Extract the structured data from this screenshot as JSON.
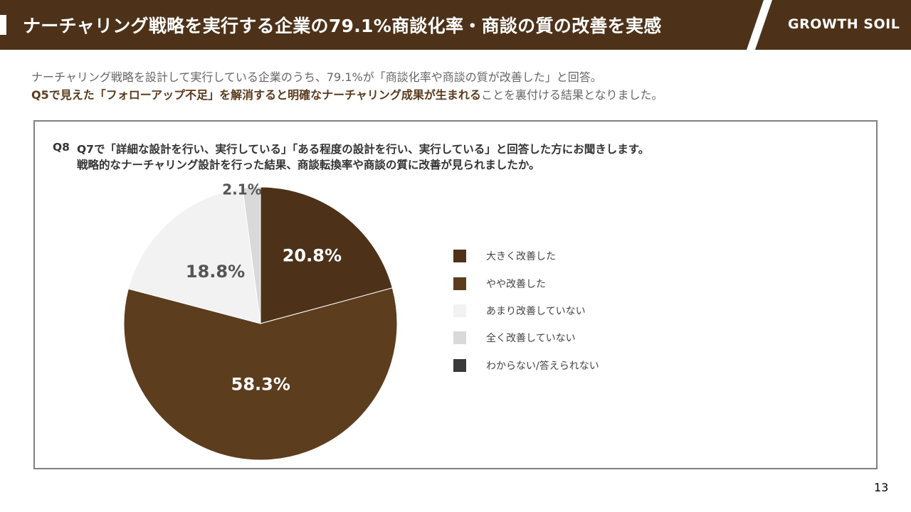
{
  "header": {
    "title": "ナーチャリング戦略を実行する企業の79.1%商談化率・商談の質の改善を実感",
    "brand": "GROWTH SOIL",
    "bg_color": "#4d3219"
  },
  "intro": {
    "line1": "ナーチャリング戦略を設計して実行している企業のうち、79.1%が「商談化率や商談の質が改善した」と回答。",
    "line2_bold": "Q5で見えた「フォローアップ不足」を解消すると明確なナーチャリング成果が生まれる",
    "line2_rest": "ことを裏付ける結果となりました。"
  },
  "question": {
    "number": "Q8",
    "line1": "Q7で「詳細な設計を行い、実行している」「ある程度の設計を行い、実行している」と回答した方にお聞きします。",
    "line2": "戦略的なナーチャリング設計を行った結果、商談転換率や商談の質に改善が見られましたか。"
  },
  "chart_data": {
    "type": "pie",
    "title": "",
    "slices": [
      {
        "name": "大きく改善した",
        "value": 20.8,
        "label": "20.8%",
        "color": "#4d3219"
      },
      {
        "name": "やや改善した",
        "value": 58.3,
        "label": "58.3%",
        "color": "#5c3d1e"
      },
      {
        "name": "あまり改善していない",
        "value": 18.8,
        "label": "18.8%",
        "color": "#f2f2f2"
      },
      {
        "name": "全く改善していない",
        "value": 2.1,
        "label": "2.1%",
        "color": "#d9d9d9"
      },
      {
        "name": "わからない/答えられない",
        "value": 0,
        "label": "",
        "color": "#3a3a3a"
      }
    ],
    "legend_position": "right"
  },
  "page_number": "13"
}
